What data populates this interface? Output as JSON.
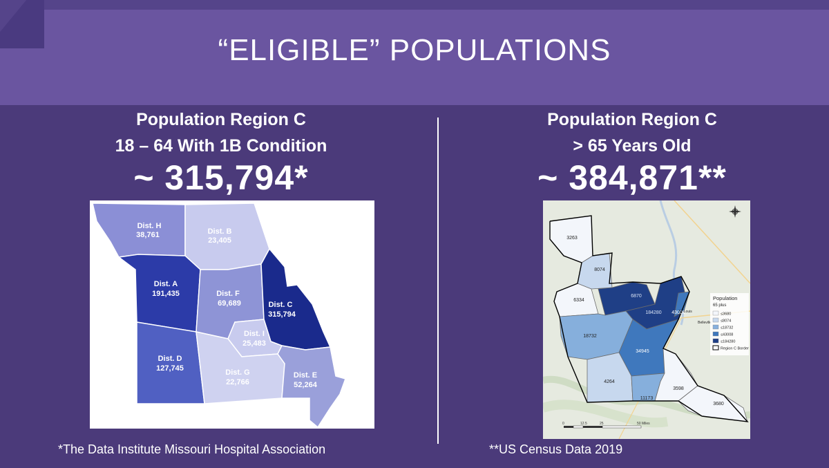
{
  "title": "“ELIGIBLE” POPULATIONS",
  "left": {
    "heading_line1": "Population Region C",
    "heading_line2": "18 – 64 With 1B Condition",
    "total": "~ 315,794*",
    "footnote": "*The Data Institute Missouri Hospital Association",
    "districts": [
      {
        "name": "Dist. H",
        "value": "38,761",
        "color": "#8b8fd6",
        "text_color": "#ffffff"
      },
      {
        "name": "Dist. B",
        "value": "23,405",
        "color": "#c8cbee",
        "text_color": "#ffffff"
      },
      {
        "name": "Dist. A",
        "value": "191,435",
        "color": "#2c3ba8",
        "text_color": "#ffffff"
      },
      {
        "name": "Dist. F",
        "value": "69,689",
        "color": "#8e94d6",
        "text_color": "#ffffff"
      },
      {
        "name": "Dist. C",
        "value": "315,794",
        "color": "#1a2a8c",
        "text_color": "#ffffff"
      },
      {
        "name": "Dist. I",
        "value": "25,483",
        "color": "#c8cbee",
        "text_color": "#ffffff"
      },
      {
        "name": "Dist. D",
        "value": "127,745",
        "color": "#5060c2",
        "text_color": "#ffffff"
      },
      {
        "name": "Dist. G",
        "value": "22,766",
        "color": "#cfd2f0",
        "text_color": "#ffffff"
      },
      {
        "name": "Dist. E",
        "value": "52,264",
        "color": "#9aa0da",
        "text_color": "#ffffff"
      }
    ]
  },
  "right": {
    "heading_line1": "Population Region C",
    "heading_line2": "> 65 Years Old",
    "total": "~ 384,871**",
    "footnote": "**US Census Data 2019",
    "county_values": [
      "3263",
      "8074",
      "6334",
      "6870",
      "184280",
      "43008",
      "18732",
      "34945",
      "4264",
      "11173",
      "3598",
      "3680"
    ],
    "city_label": "St. Louis",
    "city_label2": "Belleville",
    "legend": {
      "title": "Population",
      "subtitle": "65 plus",
      "items": [
        {
          "label": "≤3680",
          "color": "#f3f6fb"
        },
        {
          "label": "≤8074",
          "color": "#c7d8ee"
        },
        {
          "label": "≤18732",
          "color": "#86afdc"
        },
        {
          "label": "≤43008",
          "color": "#3f78bd"
        },
        {
          "label": "≤184280",
          "color": "#1f3f86"
        },
        {
          "label": "Region C Border",
          "color": "#ffffff"
        }
      ]
    },
    "scale": {
      "labels": [
        "0",
        "12.5",
        "25",
        "50 Miles"
      ]
    }
  }
}
